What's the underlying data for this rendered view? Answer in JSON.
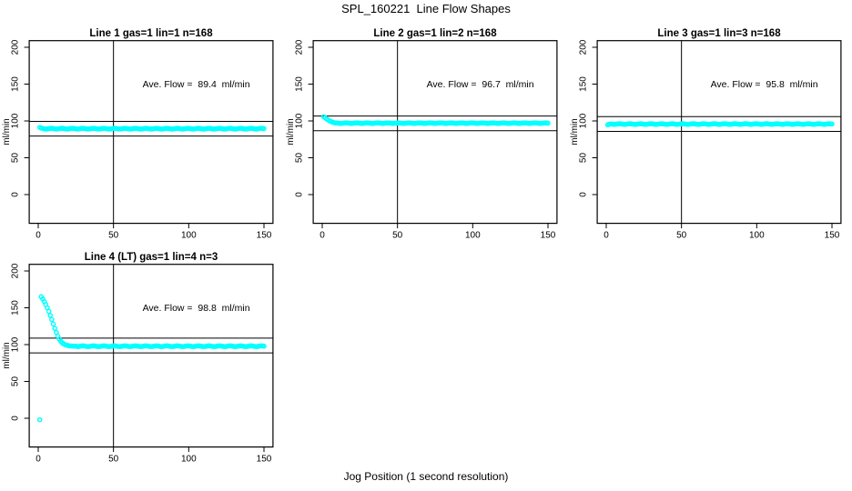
{
  "header": {
    "title": "SPL_160221  Line Flow Shapes"
  },
  "footer": {
    "xlabel": "Jog Position (1 second resolution)"
  },
  "colors": {
    "marker": "#00FFFF",
    "axis": "#000000",
    "background": "#ffffff"
  },
  "chart_data": [
    {
      "type": "scatter",
      "title": "Line 1 gas=1 lin=1 n=168",
      "annotation": "Ave. Flow =  89.4  ml/min",
      "ave_flow": 89.4,
      "n": 168,
      "gas": 1,
      "lin": 1,
      "ylabel": "ml/min",
      "xlim": [
        0,
        150
      ],
      "ylim": [
        0,
        200
      ],
      "xticks": [
        0,
        50,
        100,
        150
      ],
      "yticks": [
        0,
        50,
        100,
        150,
        200
      ],
      "vline_x": 50,
      "hlines": [
        99.4,
        79.4
      ],
      "marker_color": "#00FFFF",
      "series": [
        {
          "name": "flow",
          "segments": [
            {
              "type": "points",
              "pts": [
                [
                  1,
                  91.2
                ],
                [
                  2,
                  90.3
                ]
              ]
            },
            {
              "type": "run",
              "x0": 3,
              "x1": 150,
              "y": 89.5,
              "amp": 0.5
            }
          ]
        }
      ]
    },
    {
      "type": "scatter",
      "title": "Line 2 gas=1 lin=2 n=168",
      "annotation": "Ave. Flow =  96.7  ml/min",
      "ave_flow": 96.7,
      "n": 168,
      "gas": 1,
      "lin": 2,
      "ylabel": "ml/min",
      "xlim": [
        0,
        150
      ],
      "ylim": [
        0,
        200
      ],
      "xticks": [
        0,
        50,
        100,
        150
      ],
      "yticks": [
        0,
        50,
        100,
        150,
        200
      ],
      "vline_x": 50,
      "hlines": [
        106.7,
        86.7
      ],
      "marker_color": "#00FFFF",
      "series": [
        {
          "name": "flow",
          "segments": [
            {
              "type": "points",
              "pts": [
                [
                  1,
                  105.6
                ],
                [
                  2,
                  104.1
                ],
                [
                  3,
                  102.6
                ],
                [
                  4,
                  101.2
                ],
                [
                  5,
                  100.0
                ],
                [
                  6,
                  99.0
                ],
                [
                  7,
                  98.2
                ],
                [
                  8,
                  97.6
                ],
                [
                  9,
                  97.2
                ]
              ]
            },
            {
              "type": "run",
              "x0": 10,
              "x1": 150,
              "y": 97.0,
              "amp": 0.35
            }
          ]
        }
      ]
    },
    {
      "type": "scatter",
      "title": "Line 3 gas=1 lin=3 n=168",
      "annotation": "Ave. Flow =  95.8  ml/min",
      "ave_flow": 95.8,
      "n": 168,
      "gas": 1,
      "lin": 3,
      "ylabel": "ml/min",
      "xlim": [
        0,
        150
      ],
      "ylim": [
        0,
        200
      ],
      "xticks": [
        0,
        50,
        100,
        150
      ],
      "yticks": [
        0,
        50,
        100,
        150,
        200
      ],
      "vline_x": 50,
      "hlines": [
        105.8,
        85.8
      ],
      "marker_color": "#00FFFF",
      "series": [
        {
          "name": "flow",
          "segments": [
            {
              "type": "points",
              "pts": [
                [
                  1,
                  94.8
                ],
                [
                  2,
                  95.4
                ]
              ]
            },
            {
              "type": "run",
              "x0": 3,
              "x1": 150,
              "y": 95.8,
              "amp": 0.4
            }
          ]
        }
      ]
    },
    {
      "type": "scatter",
      "title": "Line 4 (LT) gas=1 lin=4 n=3",
      "annotation": "Ave. Flow =  98.8  ml/min",
      "ave_flow": 98.8,
      "n": 3,
      "gas": 1,
      "lin": 4,
      "ylabel": "ml/min",
      "xlim": [
        0,
        150
      ],
      "ylim": [
        0,
        200
      ],
      "xticks": [
        0,
        50,
        100,
        150
      ],
      "yticks": [
        0,
        50,
        100,
        150,
        200
      ],
      "vline_x": 50,
      "hlines": [
        108.8,
        88.8
      ],
      "marker_color": "#00FFFF",
      "series": [
        {
          "name": "flow",
          "segments": [
            {
              "type": "points",
              "pts": [
                [
                  1,
                  -2
                ],
                [
                  2,
                  165
                ],
                [
                  3,
                  162
                ],
                [
                  4,
                  158.5
                ],
                [
                  5,
                  154.5
                ],
                [
                  6,
                  150
                ],
                [
                  7,
                  145
                ],
                [
                  8,
                  139.5
                ],
                [
                  9,
                  134
                ],
                [
                  10,
                  128
                ],
                [
                  11,
                  122
                ],
                [
                  12,
                  116.5
                ],
                [
                  13,
                  111.5
                ],
                [
                  14,
                  107.5
                ],
                [
                  15,
                  104.5
                ],
                [
                  16,
                  102.3
                ],
                [
                  17,
                  100.8
                ],
                [
                  18,
                  99.8
                ],
                [
                  19,
                  99.1
                ],
                [
                  20,
                  98.6
                ],
                [
                  21,
                  98.3
                ],
                [
                  22,
                  98.1
                ],
                [
                  23,
                  98.0
                ],
                [
                  24,
                  97.9
                ],
                [
                  25,
                  97.9
                ]
              ]
            },
            {
              "type": "run",
              "x0": 26,
              "x1": 150,
              "y": 97.8,
              "amp": 0.5
            }
          ]
        }
      ]
    }
  ]
}
